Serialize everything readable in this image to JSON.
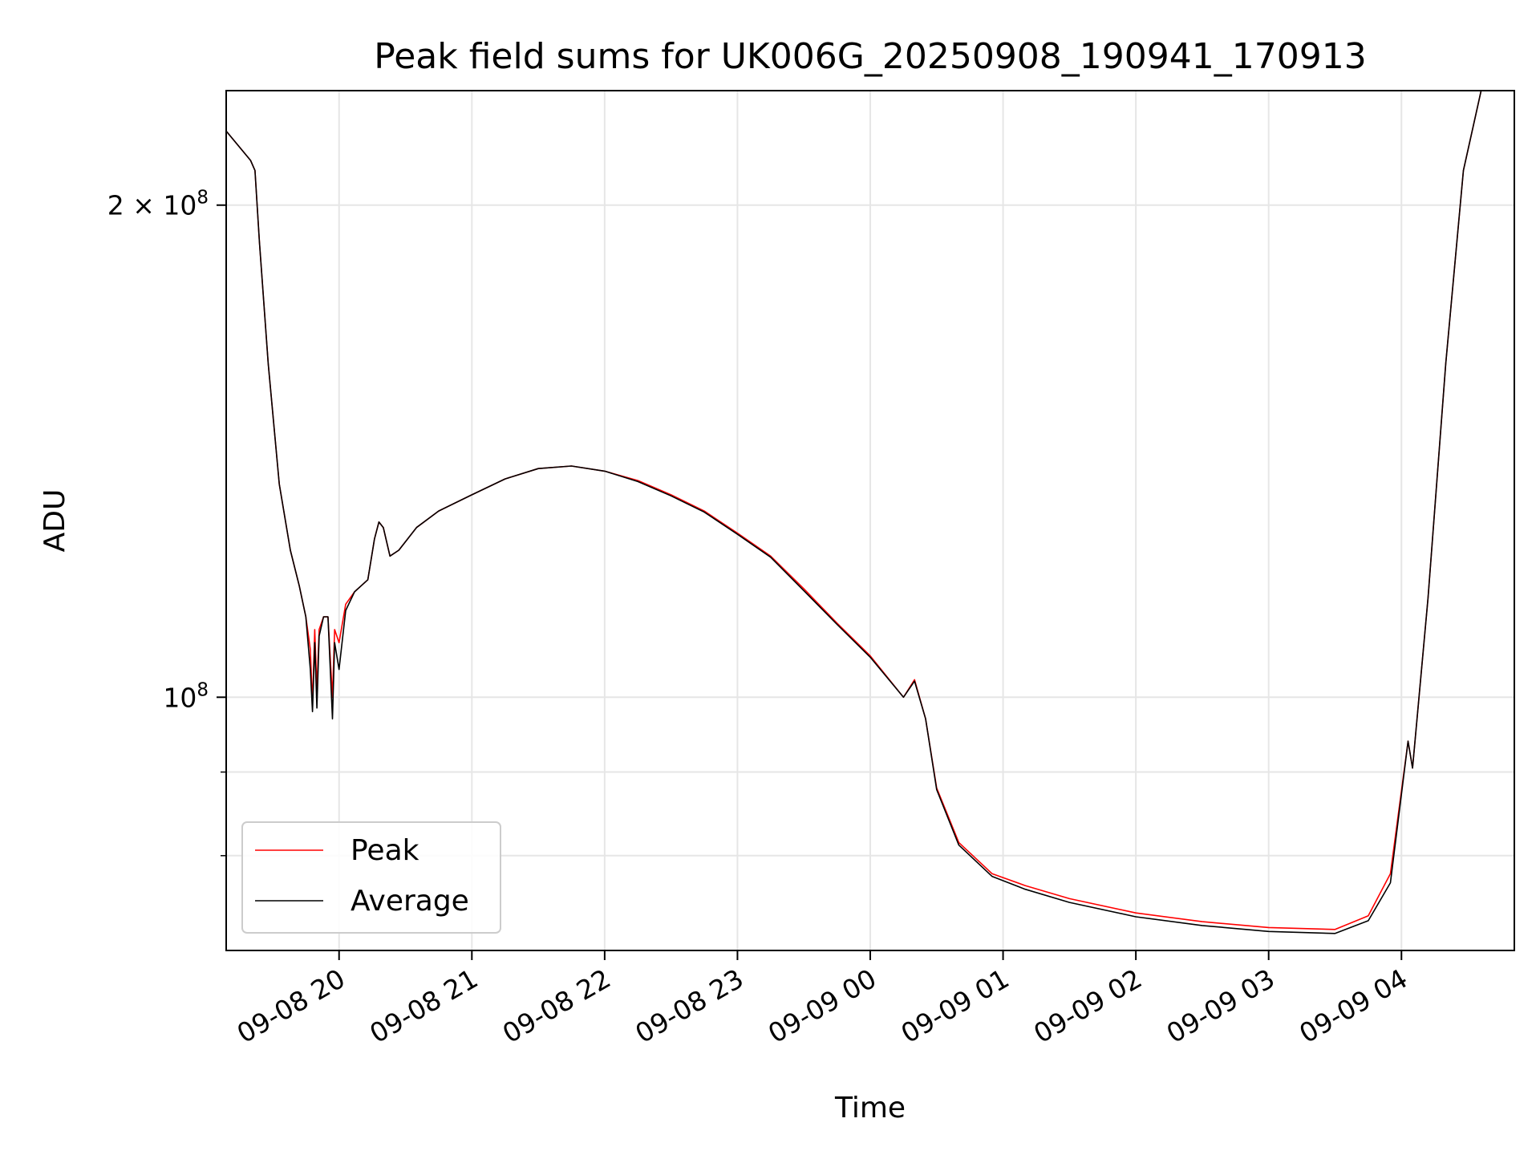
{
  "chart_data": {
    "type": "line",
    "title": "Peak field sums for UK006G_20250908_190941_170913",
    "xlabel": "Time",
    "ylabel": "ADU",
    "yscale": "log",
    "ylim": [
      70000000,
      235000000
    ],
    "xlim": [
      "2025-09-08 19:09",
      "2025-09-09 04:51"
    ],
    "grid": true,
    "legend_position": "lower-left",
    "x_ticks": [
      {
        "t": "2025-09-08 20:00",
        "label": "09-08 20"
      },
      {
        "t": "2025-09-08 21:00",
        "label": "09-08 21"
      },
      {
        "t": "2025-09-08 22:00",
        "label": "09-08 22"
      },
      {
        "t": "2025-09-08 23:00",
        "label": "09-08 23"
      },
      {
        "t": "2025-09-09 00:00",
        "label": "09-09 00"
      },
      {
        "t": "2025-09-09 01:00",
        "label": "09-09 01"
      },
      {
        "t": "2025-09-09 02:00",
        "label": "09-09 02"
      },
      {
        "t": "2025-09-09 03:00",
        "label": "09-09 03"
      },
      {
        "t": "2025-09-09 04:00",
        "label": "09-09 04"
      }
    ],
    "y_ticks_major": [
      {
        "v": 100000000,
        "base": "10",
        "exp": "8",
        "prefix": ""
      },
      {
        "v": 200000000,
        "base": "10",
        "exp": "8",
        "prefix": "2 × "
      }
    ],
    "y_ticks_minor": [
      80000000,
      90000000
    ],
    "series": [
      {
        "name": "Peak",
        "color": "#ff0000",
        "points": [
          [
            "2025-09-08 19:09",
            222000000
          ],
          [
            "2025-09-08 19:20",
            213000000
          ],
          [
            "2025-09-08 19:22",
            210000000
          ],
          [
            "2025-09-08 19:24",
            190000000
          ],
          [
            "2025-09-08 19:28",
            160000000
          ],
          [
            "2025-09-08 19:33",
            135000000
          ],
          [
            "2025-09-08 19:38",
            123000000
          ],
          [
            "2025-09-08 19:42",
            117000000
          ],
          [
            "2025-09-08 19:45",
            112000000
          ],
          [
            "2025-09-08 19:47",
            107000000
          ],
          [
            "2025-09-08 19:48",
            99000000
          ],
          [
            "2025-09-08 19:49",
            110000000
          ],
          [
            "2025-09-08 19:50",
            101000000
          ],
          [
            "2025-09-08 19:51",
            110000000
          ],
          [
            "2025-09-08 19:53",
            112000000
          ],
          [
            "2025-09-08 19:55",
            112000000
          ],
          [
            "2025-09-08 19:57",
            100000000
          ],
          [
            "2025-09-08 19:58",
            110000000
          ],
          [
            "2025-09-08 20:00",
            108000000
          ],
          [
            "2025-09-08 20:03",
            114000000
          ],
          [
            "2025-09-08 20:07",
            116000000
          ],
          [
            "2025-09-08 20:10",
            117000000
          ],
          [
            "2025-09-08 20:13",
            118000000
          ],
          [
            "2025-09-08 20:16",
            125000000
          ],
          [
            "2025-09-08 20:18",
            128000000
          ],
          [
            "2025-09-08 20:20",
            127000000
          ],
          [
            "2025-09-08 20:23",
            122000000
          ],
          [
            "2025-09-08 20:27",
            123000000
          ],
          [
            "2025-09-08 20:35",
            127000000
          ],
          [
            "2025-09-08 20:45",
            130000000
          ],
          [
            "2025-09-08 21:00",
            133000000
          ],
          [
            "2025-09-08 21:15",
            136000000
          ],
          [
            "2025-09-08 21:30",
            138000000
          ],
          [
            "2025-09-08 21:45",
            138500000
          ],
          [
            "2025-09-08 22:00",
            137500000
          ],
          [
            "2025-09-08 22:15",
            135700000
          ],
          [
            "2025-09-08 22:30",
            133000000
          ],
          [
            "2025-09-08 22:45",
            130000000
          ],
          [
            "2025-09-08 23:00",
            126000000
          ],
          [
            "2025-09-08 23:15",
            122000000
          ],
          [
            "2025-09-08 23:30",
            116500000
          ],
          [
            "2025-09-08 23:45",
            111000000
          ],
          [
            "2025-09-09 00:00",
            106000000
          ],
          [
            "2025-09-09 00:15",
            100000000
          ],
          [
            "2025-09-09 00:20",
            102500000
          ],
          [
            "2025-09-09 00:25",
            97000000
          ],
          [
            "2025-09-09 00:30",
            88000000
          ],
          [
            "2025-09-09 00:40",
            81500000
          ],
          [
            "2025-09-09 00:55",
            78000000
          ],
          [
            "2025-09-09 01:10",
            76700000
          ],
          [
            "2025-09-09 01:30",
            75300000
          ],
          [
            "2025-09-09 02:00",
            73800000
          ],
          [
            "2025-09-09 02:30",
            72900000
          ],
          [
            "2025-09-09 03:00",
            72300000
          ],
          [
            "2025-09-09 03:30",
            72100000
          ],
          [
            "2025-09-09 03:45",
            73500000
          ],
          [
            "2025-09-09 03:55",
            78000000
          ],
          [
            "2025-09-09 04:03",
            94000000
          ],
          [
            "2025-09-09 04:05",
            90500000
          ],
          [
            "2025-09-09 04:12",
            115000000
          ],
          [
            "2025-09-09 04:20",
            160000000
          ],
          [
            "2025-09-09 04:28",
            210000000
          ],
          [
            "2025-09-09 04:36",
            235000000
          ],
          [
            "2025-09-09 04:51",
            235000000
          ]
        ]
      },
      {
        "name": "Average",
        "color": "#000000",
        "points": [
          [
            "2025-09-08 19:09",
            222000000
          ],
          [
            "2025-09-08 19:20",
            213000000
          ],
          [
            "2025-09-08 19:22",
            210000000
          ],
          [
            "2025-09-08 19:24",
            190000000
          ],
          [
            "2025-09-08 19:28",
            160000000
          ],
          [
            "2025-09-08 19:33",
            135000000
          ],
          [
            "2025-09-08 19:38",
            123000000
          ],
          [
            "2025-09-08 19:42",
            117000000
          ],
          [
            "2025-09-08 19:45",
            112000000
          ],
          [
            "2025-09-08 19:47",
            104000000
          ],
          [
            "2025-09-08 19:48",
            98000000
          ],
          [
            "2025-09-08 19:49",
            108000000
          ],
          [
            "2025-09-08 19:50",
            98500000
          ],
          [
            "2025-09-08 19:51",
            109000000
          ],
          [
            "2025-09-08 19:53",
            112000000
          ],
          [
            "2025-09-08 19:55",
            112000000
          ],
          [
            "2025-09-08 19:57",
            97000000
          ],
          [
            "2025-09-08 19:58",
            108000000
          ],
          [
            "2025-09-08 20:00",
            104000000
          ],
          [
            "2025-09-08 20:03",
            113000000
          ],
          [
            "2025-09-08 20:07",
            116000000
          ],
          [
            "2025-09-08 20:10",
            117000000
          ],
          [
            "2025-09-08 20:13",
            118000000
          ],
          [
            "2025-09-08 20:16",
            125000000
          ],
          [
            "2025-09-08 20:18",
            128000000
          ],
          [
            "2025-09-08 20:20",
            127000000
          ],
          [
            "2025-09-08 20:23",
            122000000
          ],
          [
            "2025-09-08 20:27",
            123000000
          ],
          [
            "2025-09-08 20:35",
            127000000
          ],
          [
            "2025-09-08 20:45",
            130000000
          ],
          [
            "2025-09-08 21:00",
            133000000
          ],
          [
            "2025-09-08 21:15",
            136000000
          ],
          [
            "2025-09-08 21:30",
            138000000
          ],
          [
            "2025-09-08 21:45",
            138500000
          ],
          [
            "2025-09-08 22:00",
            137500000
          ],
          [
            "2025-09-08 22:15",
            135500000
          ],
          [
            "2025-09-08 22:30",
            132800000
          ],
          [
            "2025-09-08 22:45",
            129800000
          ],
          [
            "2025-09-08 23:00",
            125800000
          ],
          [
            "2025-09-08 23:15",
            121800000
          ],
          [
            "2025-09-08 23:30",
            116200000
          ],
          [
            "2025-09-08 23:45",
            110800000
          ],
          [
            "2025-09-09 00:00",
            105800000
          ],
          [
            "2025-09-09 00:15",
            100000000
          ],
          [
            "2025-09-09 00:20",
            102300000
          ],
          [
            "2025-09-09 00:25",
            97000000
          ],
          [
            "2025-09-09 00:30",
            87800000
          ],
          [
            "2025-09-09 00:40",
            81200000
          ],
          [
            "2025-09-09 00:55",
            77700000
          ],
          [
            "2025-09-09 01:10",
            76300000
          ],
          [
            "2025-09-09 01:30",
            74900000
          ],
          [
            "2025-09-09 02:00",
            73400000
          ],
          [
            "2025-09-09 02:30",
            72500000
          ],
          [
            "2025-09-09 03:00",
            71900000
          ],
          [
            "2025-09-09 03:30",
            71700000
          ],
          [
            "2025-09-09 03:45",
            73000000
          ],
          [
            "2025-09-09 03:55",
            77000000
          ],
          [
            "2025-09-09 04:03",
            94000000
          ],
          [
            "2025-09-09 04:05",
            90500000
          ],
          [
            "2025-09-09 04:12",
            115000000
          ],
          [
            "2025-09-09 04:20",
            160000000
          ],
          [
            "2025-09-09 04:28",
            210000000
          ],
          [
            "2025-09-09 04:36",
            235000000
          ],
          [
            "2025-09-09 04:51",
            235000000
          ]
        ]
      }
    ]
  }
}
